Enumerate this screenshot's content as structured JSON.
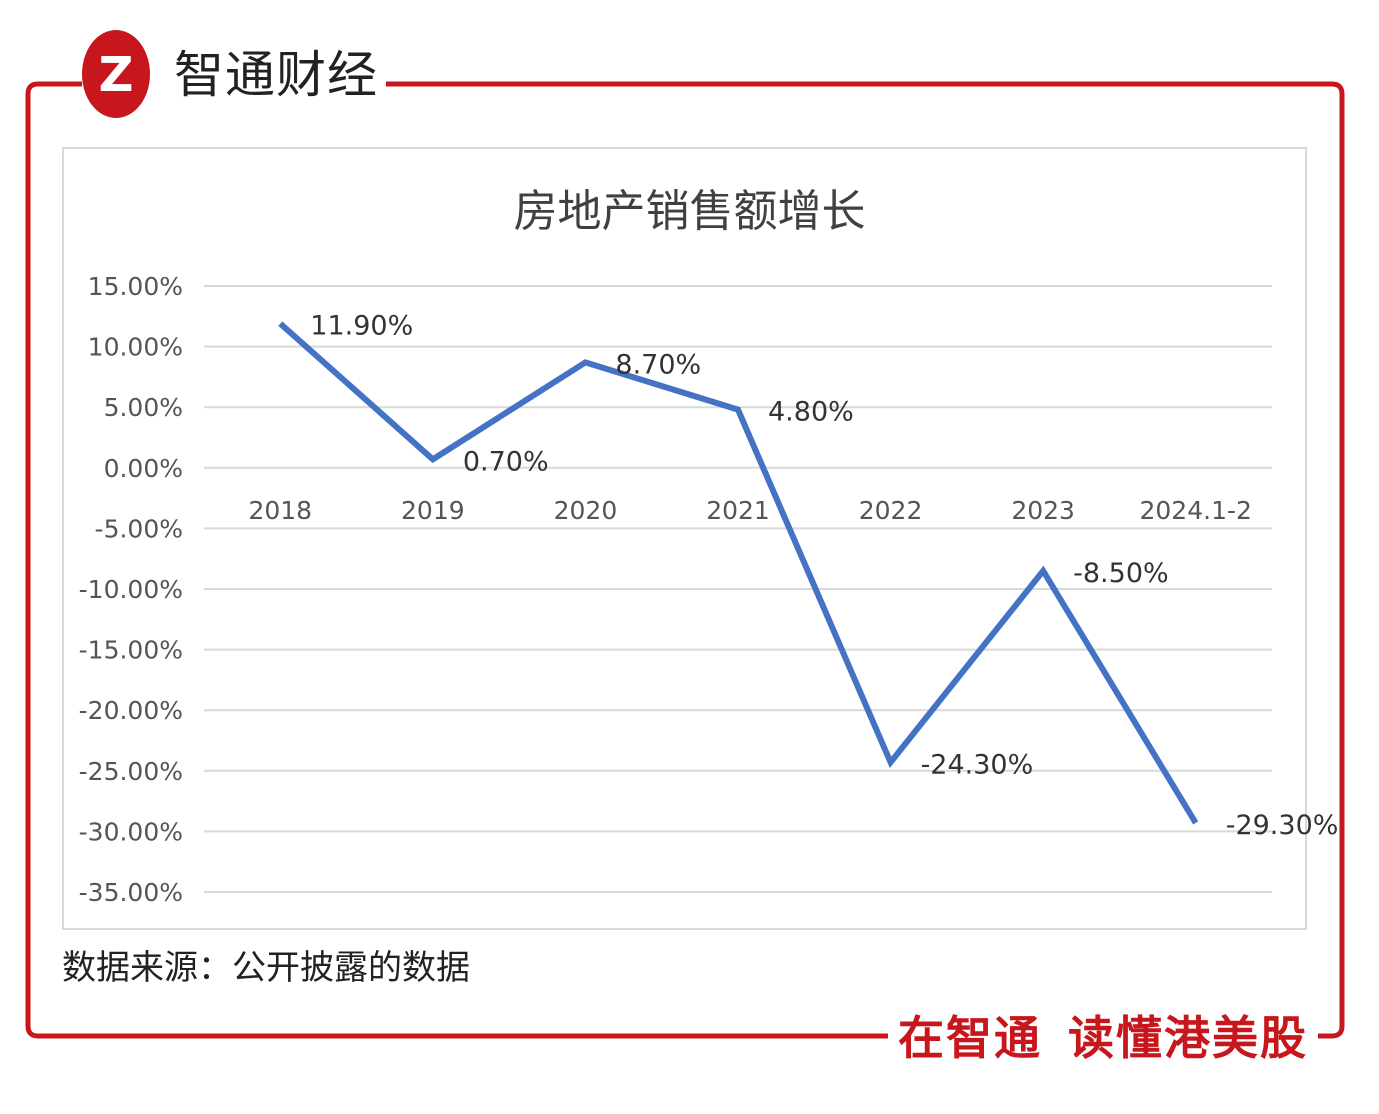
{
  "brand": {
    "name": "智通财经",
    "logo_glyph": "Z",
    "slogan_left": "在智通",
    "slogan_right": "读懂港美股"
  },
  "colors": {
    "brand_red": "#c8161d",
    "series_line": "#4472c4",
    "grid": "#d9d9d9"
  },
  "source_note": "数据来源：公开披露的数据",
  "chart_data": {
    "type": "line",
    "title": "房地产销售额增长",
    "categories": [
      "2018",
      "2019",
      "2020",
      "2021",
      "2022",
      "2023",
      "2024.1-2"
    ],
    "series": [
      {
        "values": [
          11.9,
          0.7,
          8.7,
          4.8,
          -24.3,
          -8.5,
          -29.3
        ],
        "labels": [
          "11.90%",
          "0.70%",
          "8.70%",
          "4.80%",
          "-24.30%",
          "-8.50%",
          "-29.30%"
        ]
      }
    ],
    "y_ticks": [
      "15.00%",
      "10.00%",
      "5.00%",
      "0.00%",
      "-5.00%",
      "-10.00%",
      "-15.00%",
      "-20.00%",
      "-25.00%",
      "-30.00%",
      "-35.00%"
    ],
    "ylim": [
      -35,
      15
    ],
    "y_step": 5,
    "grid": true,
    "legend": "none"
  }
}
